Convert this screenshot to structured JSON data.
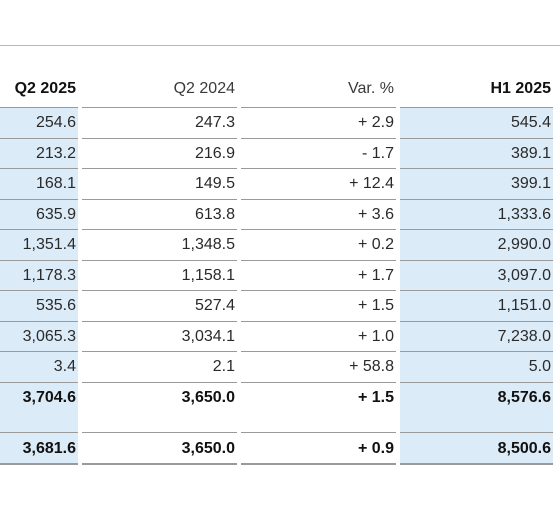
{
  "table": {
    "headers": [
      "Q2 2025",
      "Q2 2024",
      "Var. %",
      "H1 2025"
    ],
    "rows": [
      {
        "q2_2025": "254.6",
        "q2_2024": "247.3",
        "var": "+ 2.9",
        "h1_2025": "545.4"
      },
      {
        "q2_2025": "213.2",
        "q2_2024": "216.9",
        "var": "- 1.7",
        "h1_2025": "389.1"
      },
      {
        "q2_2025": "168.1",
        "q2_2024": "149.5",
        "var": "+ 12.4",
        "h1_2025": "399.1"
      },
      {
        "q2_2025": "635.9",
        "q2_2024": "613.8",
        "var": "+ 3.6",
        "h1_2025": "1,333.6"
      },
      {
        "q2_2025": "1,351.4",
        "q2_2024": "1,348.5",
        "var": "+ 0.2",
        "h1_2025": "2,990.0"
      },
      {
        "q2_2025": "1,178.3",
        "q2_2024": "1,158.1",
        "var": "+ 1.7",
        "h1_2025": "3,097.0"
      },
      {
        "q2_2025": "535.6",
        "q2_2024": "527.4",
        "var": "+ 1.5",
        "h1_2025": "1,151.0"
      },
      {
        "q2_2025": "3,065.3",
        "q2_2024": "3,034.1",
        "var": "+ 1.0",
        "h1_2025": "7,238.0"
      },
      {
        "q2_2025": "3.4",
        "q2_2024": "2.1",
        "var": "+ 58.8",
        "h1_2025": "5.0"
      },
      {
        "q2_2025": "3,704.6",
        "q2_2024": "3,650.0",
        "var": "+ 1.5",
        "h1_2025": "8,576.6",
        "bold": true
      },
      {
        "q2_2025": "3,681.6",
        "q2_2024": "3,650.0",
        "var": "+ 0.9",
        "h1_2025": "8,500.6",
        "bold": true
      }
    ]
  },
  "colors": {
    "highlight_column": "#dcebf8",
    "rule": "#9a9a9a"
  }
}
